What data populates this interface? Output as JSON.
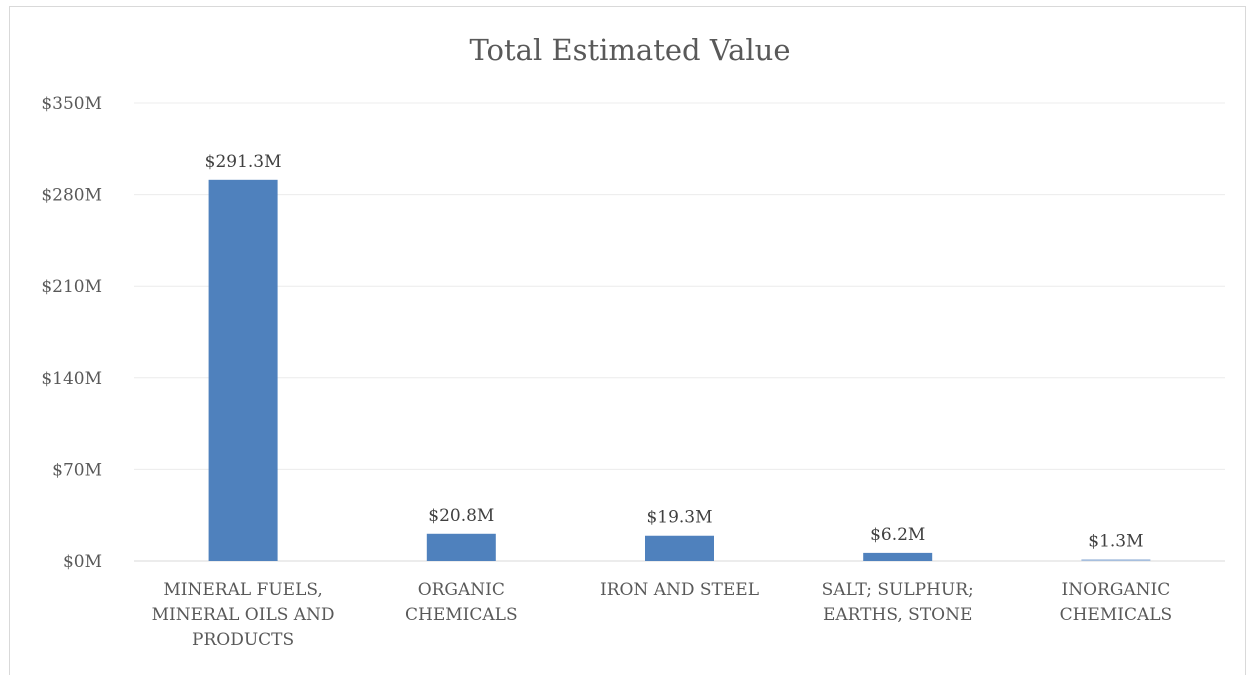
{
  "chart_data": {
    "type": "bar",
    "title": "Total Estimated Value",
    "xlabel": "",
    "ylabel": "",
    "categories": [
      [
        "MINERAL FUELS,",
        "MINERAL OILS AND",
        "PRODUCTS"
      ],
      [
        "ORGANIC",
        "CHEMICALS"
      ],
      [
        "IRON AND STEEL"
      ],
      [
        "SALT; SULPHUR;",
        "EARTHS, STONE"
      ],
      [
        "INORGANIC",
        "CHEMICALS"
      ]
    ],
    "values": [
      291.3,
      20.8,
      19.3,
      6.2,
      1.3
    ],
    "data_labels": [
      "$291.3M",
      "$20.8M",
      "$19.3M",
      "$6.2M",
      "$1.3M"
    ],
    "ylim": [
      0,
      350
    ],
    "yticks": [
      0,
      70,
      140,
      210,
      280,
      350
    ],
    "ytick_labels": [
      "$0M",
      "$70M",
      "$140M",
      "$210M",
      "$280M",
      "$350M"
    ],
    "grid": true,
    "legend": "none",
    "colors": {
      "bar": "#4f81bd",
      "bar_last": "#a7bfde",
      "grid": "#ececec",
      "text": "#595959"
    }
  }
}
